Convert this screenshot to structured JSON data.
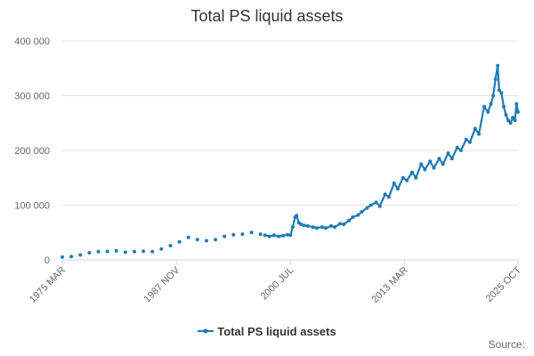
{
  "chart_data": {
    "type": "line",
    "title": "Total PS liquid assets",
    "xlabel": "",
    "ylabel": "",
    "ylim": [
      0,
      400000
    ],
    "yticks": [
      0,
      100000,
      200000,
      300000,
      400000
    ],
    "ytick_labels": [
      "0",
      "100 000",
      "200 000",
      "300 000",
      "400 000"
    ],
    "xticks": [
      "1975 MAR",
      "1987 NOV",
      "2000 JUL",
      "2013 MAR",
      "2025 OCT"
    ],
    "grid": "horizontal",
    "legend_position": "bottom",
    "series": [
      {
        "name": "Total PS liquid assets",
        "color": "#1f7bb6",
        "points": [
          [
            "1975-03",
            5000
          ],
          [
            "1976-03",
            6000
          ],
          [
            "1977-03",
            9000
          ],
          [
            "1978-03",
            13000
          ],
          [
            "1979-03",
            15000
          ],
          [
            "1980-03",
            15500
          ],
          [
            "1981-03",
            16500
          ],
          [
            "1982-03",
            14000
          ],
          [
            "1983-03",
            15000
          ],
          [
            "1984-03",
            16000
          ],
          [
            "1985-03",
            15000
          ],
          [
            "1986-03",
            20000
          ],
          [
            "1987-03",
            26000
          ],
          [
            "1988-03",
            33000
          ],
          [
            "1989-03",
            41000
          ],
          [
            "1990-03",
            37000
          ],
          [
            "1991-03",
            35000
          ],
          [
            "1992-03",
            37000
          ],
          [
            "1993-03",
            43000
          ],
          [
            "1994-03",
            46000
          ],
          [
            "1995-03",
            47000
          ],
          [
            "1996-03",
            50000
          ],
          [
            "1997-03",
            47000
          ],
          [
            "1997-09",
            45000
          ],
          [
            "1998-03",
            43000
          ],
          [
            "1998-09",
            45000
          ],
          [
            "1999-03",
            43000
          ],
          [
            "1999-09",
            44000
          ],
          [
            "2000-03",
            46000
          ],
          [
            "2000-07",
            45000
          ],
          [
            "2000-10",
            60000
          ],
          [
            "2001-01",
            78000
          ],
          [
            "2001-03",
            81000
          ],
          [
            "2001-06",
            68000
          ],
          [
            "2001-09",
            65000
          ],
          [
            "2002-01",
            63000
          ],
          [
            "2002-06",
            62000
          ],
          [
            "2003-01",
            60000
          ],
          [
            "2003-06",
            58000
          ],
          [
            "2004-01",
            60000
          ],
          [
            "2004-06",
            58000
          ],
          [
            "2005-01",
            62000
          ],
          [
            "2005-06",
            60000
          ],
          [
            "2006-01",
            66000
          ],
          [
            "2006-06",
            65000
          ],
          [
            "2007-01",
            72000
          ],
          [
            "2007-06",
            78000
          ],
          [
            "2008-01",
            82000
          ],
          [
            "2008-06",
            88000
          ],
          [
            "2009-01",
            95000
          ],
          [
            "2009-06",
            100000
          ],
          [
            "2010-01",
            105000
          ],
          [
            "2010-06",
            98000
          ],
          [
            "2011-01",
            120000
          ],
          [
            "2011-06",
            115000
          ],
          [
            "2012-01",
            140000
          ],
          [
            "2012-06",
            130000
          ],
          [
            "2013-01",
            150000
          ],
          [
            "2013-06",
            145000
          ],
          [
            "2014-01",
            160000
          ],
          [
            "2014-06",
            150000
          ],
          [
            "2015-01",
            175000
          ],
          [
            "2015-06",
            165000
          ],
          [
            "2016-01",
            180000
          ],
          [
            "2016-06",
            168000
          ],
          [
            "2017-01",
            185000
          ],
          [
            "2017-06",
            175000
          ],
          [
            "2018-01",
            195000
          ],
          [
            "2018-06",
            185000
          ],
          [
            "2019-01",
            205000
          ],
          [
            "2019-06",
            200000
          ],
          [
            "2020-01",
            220000
          ],
          [
            "2020-06",
            215000
          ],
          [
            "2021-01",
            240000
          ],
          [
            "2021-06",
            230000
          ],
          [
            "2022-01",
            280000
          ],
          [
            "2022-06",
            270000
          ],
          [
            "2022-10",
            285000
          ],
          [
            "2023-01",
            300000
          ],
          [
            "2023-04",
            330000
          ],
          [
            "2023-07",
            355000
          ],
          [
            "2023-09",
            310000
          ],
          [
            "2023-12",
            305000
          ],
          [
            "2024-03",
            280000
          ],
          [
            "2024-06",
            265000
          ],
          [
            "2024-09",
            255000
          ],
          [
            "2024-12",
            250000
          ],
          [
            "2025-03",
            260000
          ],
          [
            "2025-06",
            255000
          ],
          [
            "2025-08",
            285000
          ],
          [
            "2025-10",
            270000
          ]
        ]
      }
    ]
  },
  "legend": {
    "label": "Total PS liquid assets"
  },
  "source": {
    "label": "Source:"
  }
}
